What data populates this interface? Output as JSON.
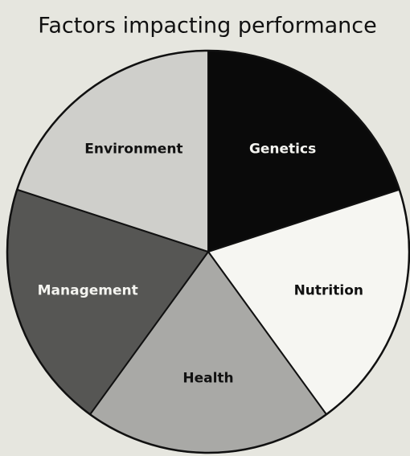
{
  "chart_data": {
    "type": "pie",
    "title": "Factors impacting performance",
    "categories": [
      "Genetics",
      "Nutrition",
      "Health",
      "Management",
      "Environment"
    ],
    "values": [
      20,
      20,
      20,
      20,
      20
    ],
    "colors": [
      "#0a0a0a",
      "#f6f6f2",
      "#a9a9a6",
      "#565654",
      "#cfcfcb"
    ],
    "start_angle": 0,
    "direction": "clockwise"
  }
}
